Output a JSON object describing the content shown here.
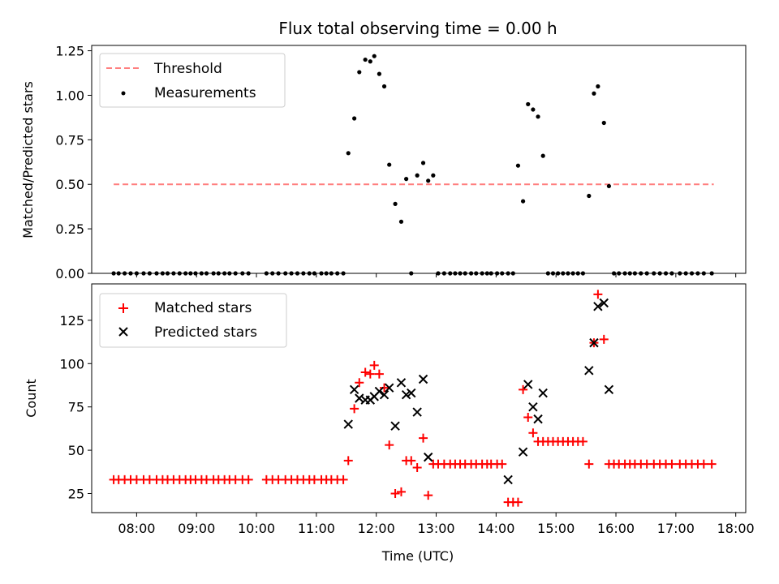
{
  "chart_data": [
    {
      "type": "scatter",
      "title": "Flux total observing time = 0.00 h",
      "ylabel": "Matched/Predicted stars",
      "xlabel": "",
      "xlim": [
        "07:15",
        "18:10"
      ],
      "ylim": [
        0,
        1.28
      ],
      "yticks": [
        0.0,
        0.25,
        0.5,
        0.75,
        1.0,
        1.25
      ],
      "ytick_labels": [
        "0.00",
        "0.25",
        "0.50",
        "0.75",
        "1.00",
        "1.25"
      ],
      "legend": {
        "placement": "upper-left",
        "entries": [
          "Threshold",
          "Measurements"
        ]
      },
      "series": [
        {
          "name": "Threshold",
          "kind": "dashed-line",
          "color": "#ff7f7f",
          "x": [
            "07:37",
            "17:38"
          ],
          "y": [
            0.5,
            0.5
          ]
        },
        {
          "name": "Measurements",
          "kind": "dot",
          "color": "#000000",
          "x": [
            "07:37",
            "07:42",
            "07:48",
            "07:54",
            "08:00",
            "08:07",
            "08:13",
            "08:20",
            "08:26",
            "08:31",
            "08:37",
            "08:43",
            "08:49",
            "08:54",
            "08:59",
            "09:05",
            "09:10",
            "09:17",
            "09:22",
            "09:28",
            "09:33",
            "09:39",
            "09:46",
            "09:52",
            "10:10",
            "10:16",
            "10:22",
            "10:29",
            "10:35",
            "10:41",
            "10:47",
            "10:53",
            "10:58",
            "11:05",
            "11:10",
            "11:15",
            "11:21",
            "11:27",
            "11:32",
            "11:38",
            "11:43",
            "11:49",
            "11:54",
            "11:58",
            "12:03",
            "12:08",
            "12:13",
            "12:19",
            "12:25",
            "12:30",
            "12:35",
            "12:41",
            "12:47",
            "12:52",
            "12:57",
            "13:02",
            "13:08",
            "13:14",
            "13:19",
            "13:24",
            "13:29",
            "13:35",
            "13:40",
            "13:46",
            "13:51",
            "13:55",
            "14:01",
            "14:06",
            "14:12",
            "14:17",
            "14:22",
            "14:27",
            "14:32",
            "14:37",
            "14:42",
            "14:47",
            "14:52",
            "14:57",
            "15:02",
            "15:07",
            "15:12",
            "15:17",
            "15:22",
            "15:27",
            "15:33",
            "15:38",
            "15:42",
            "15:48",
            "15:53",
            "15:58",
            "16:03",
            "16:09",
            "16:14",
            "16:19",
            "16:25",
            "16:31",
            "16:38",
            "16:44",
            "16:50",
            "16:56",
            "17:04",
            "17:10",
            "17:16",
            "17:22",
            "17:28",
            "17:36"
          ],
          "y": [
            0,
            0,
            0,
            0,
            0,
            0,
            0,
            0,
            0,
            0,
            0,
            0,
            0,
            0,
            0,
            0,
            0,
            0,
            0,
            0,
            0,
            0,
            0,
            0,
            0,
            0,
            0,
            0,
            0,
            0,
            0,
            0,
            0,
            0,
            0,
            0,
            0,
            0,
            0.675,
            0.87,
            1.13,
            1.2,
            1.19,
            1.22,
            1.12,
            1.05,
            0.61,
            0.39,
            0.29,
            0.53,
            0,
            0.55,
            0.62,
            0.52,
            0.55,
            0,
            0,
            0,
            0,
            0,
            0,
            0,
            0,
            0,
            0,
            0,
            0,
            0,
            0,
            0,
            0.605,
            0.405,
            0.95,
            0.92,
            0.88,
            0.66,
            0,
            0,
            0,
            0,
            0,
            0,
            0,
            0,
            0.435,
            1.01,
            1.05,
            0.845,
            0.49,
            0,
            0,
            0,
            0,
            0,
            0,
            0,
            0,
            0,
            0,
            0,
            0,
            0,
            0,
            0,
            0,
            0
          ]
        }
      ]
    },
    {
      "type": "scatter",
      "title": "",
      "ylabel": "Count",
      "xlabel": "Time (UTC)",
      "xlim": [
        "07:15",
        "18:10"
      ],
      "ylim": [
        14,
        146
      ],
      "yticks": [
        25,
        50,
        75,
        100,
        125
      ],
      "ytick_labels": [
        "25",
        "50",
        "75",
        "100",
        "125"
      ],
      "xtick_labels": [
        "08:00",
        "09:00",
        "10:00",
        "11:00",
        "12:00",
        "13:00",
        "14:00",
        "15:00",
        "16:00",
        "17:00",
        "18:00"
      ],
      "legend": {
        "placement": "upper-left",
        "entries": [
          "Matched stars",
          "Predicted stars"
        ]
      },
      "series": [
        {
          "name": "Matched stars",
          "kind": "plus",
          "color": "#ff0000",
          "x": [
            "07:37",
            "07:42",
            "07:48",
            "07:54",
            "08:00",
            "08:07",
            "08:13",
            "08:20",
            "08:26",
            "08:31",
            "08:37",
            "08:43",
            "08:49",
            "08:54",
            "08:59",
            "09:05",
            "09:10",
            "09:17",
            "09:22",
            "09:28",
            "09:33",
            "09:39",
            "09:46",
            "09:52",
            "10:10",
            "10:16",
            "10:22",
            "10:29",
            "10:35",
            "10:41",
            "10:47",
            "10:53",
            "10:58",
            "11:05",
            "11:10",
            "11:15",
            "11:21",
            "11:27",
            "11:32",
            "11:38",
            "11:43",
            "11:49",
            "11:54",
            "11:58",
            "12:03",
            "12:08",
            "12:13",
            "12:19",
            "12:25",
            "12:30",
            "12:35",
            "12:41",
            "12:47",
            "12:52",
            "12:57",
            "13:02",
            "13:08",
            "13:14",
            "13:19",
            "13:24",
            "13:29",
            "13:35",
            "13:40",
            "13:46",
            "13:51",
            "13:55",
            "14:01",
            "14:06",
            "14:12",
            "14:17",
            "14:22",
            "14:27",
            "14:32",
            "14:37",
            "14:42",
            "14:47",
            "14:52",
            "14:57",
            "15:02",
            "15:07",
            "15:12",
            "15:17",
            "15:22",
            "15:27",
            "15:33",
            "15:38",
            "15:42",
            "15:48",
            "15:53",
            "15:58",
            "16:03",
            "16:09",
            "16:14",
            "16:19",
            "16:25",
            "16:31",
            "16:38",
            "16:44",
            "16:50",
            "16:56",
            "17:04",
            "17:10",
            "17:16",
            "17:22",
            "17:28",
            "17:36"
          ],
          "y": [
            33,
            33,
            33,
            33,
            33,
            33,
            33,
            33,
            33,
            33,
            33,
            33,
            33,
            33,
            33,
            33,
            33,
            33,
            33,
            33,
            33,
            33,
            33,
            33,
            33,
            33,
            33,
            33,
            33,
            33,
            33,
            33,
            33,
            33,
            33,
            33,
            33,
            33,
            44,
            74,
            89,
            95,
            94,
            99,
            94,
            86,
            53,
            25,
            26,
            44,
            44,
            40,
            57,
            24,
            42,
            42,
            42,
            42,
            42,
            42,
            42,
            42,
            42,
            42,
            42,
            42,
            42,
            42,
            20,
            20,
            20,
            85,
            69,
            60,
            55,
            55,
            55,
            55,
            55,
            55,
            55,
            55,
            55,
            55,
            42,
            112,
            140,
            114,
            42,
            42,
            42,
            42,
            42,
            42,
            42,
            42,
            42,
            42,
            42,
            42,
            42,
            42,
            42,
            42,
            42,
            42
          ]
        },
        {
          "name": "Predicted stars",
          "kind": "x",
          "color": "#000000",
          "x": [
            "11:32",
            "11:38",
            "11:43",
            "11:49",
            "11:54",
            "11:58",
            "12:03",
            "12:08",
            "12:13",
            "12:19",
            "12:25",
            "12:30",
            "12:35",
            "12:41",
            "12:47",
            "12:52",
            "14:12",
            "14:27",
            "14:32",
            "14:37",
            "14:42",
            "14:47",
            "15:33",
            "15:38",
            "15:42",
            "15:48",
            "15:53"
          ],
          "y": [
            65,
            85,
            80,
            79,
            79,
            81,
            84,
            82,
            86,
            64,
            89,
            82,
            83,
            72,
            91,
            46,
            33,
            49,
            88,
            75,
            68,
            83,
            96,
            112,
            133,
            135,
            85
          ]
        }
      ]
    }
  ]
}
